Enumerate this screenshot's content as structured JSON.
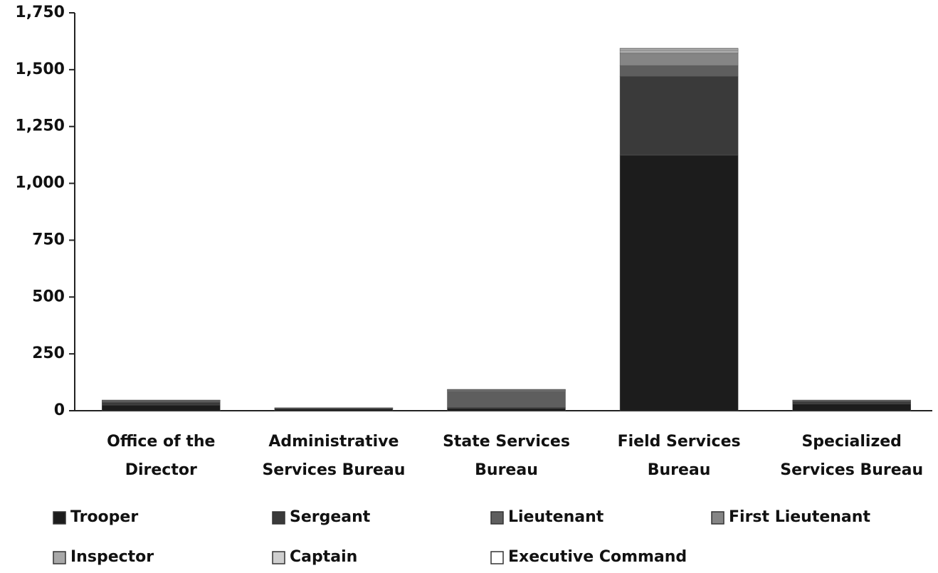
{
  "chart_data": {
    "type": "stacked_bar",
    "categories": [
      [
        "Office of the",
        "Director"
      ],
      [
        "Administrative",
        "Services Bureau"
      ],
      [
        "State Services",
        "Bureau"
      ],
      [
        "Field Services",
        "Bureau"
      ],
      [
        "Specialized",
        "Services Bureau"
      ]
    ],
    "series": [
      {
        "name": "Trooper",
        "color": "#1c1c1c",
        "values": [
          25,
          8,
          10,
          1124,
          30
        ]
      },
      {
        "name": "Sergeant",
        "color": "#3a3a3a",
        "values": [
          12,
          3,
          5,
          347,
          10
        ]
      },
      {
        "name": "Lieutenant",
        "color": "#5e5e5e",
        "values": [
          5,
          1,
          70,
          47,
          3
        ]
      },
      {
        "name": "First Lieutenant",
        "color": "#858585",
        "values": [
          2,
          1,
          5,
          54,
          2
        ]
      },
      {
        "name": "Inspector",
        "color": "#a8a8a8",
        "values": [
          1,
          0,
          2,
          15,
          1
        ]
      },
      {
        "name": "Captain",
        "color": "#cfcfcf",
        "values": [
          1,
          0,
          1,
          5,
          1
        ]
      },
      {
        "name": "Executive Command",
        "color": "#ffffff",
        "values": [
          1,
          0,
          1,
          2,
          0
        ]
      }
    ],
    "ylim": [
      0,
      1750
    ],
    "yticks": [
      0,
      250,
      500,
      750,
      {
        "value": 1000,
        "label": "1,000"
      },
      {
        "value": 1250,
        "label": "1,250"
      },
      {
        "value": 1500,
        "label": "1,500"
      },
      {
        "value": 1750,
        "label": "1,750"
      }
    ]
  }
}
